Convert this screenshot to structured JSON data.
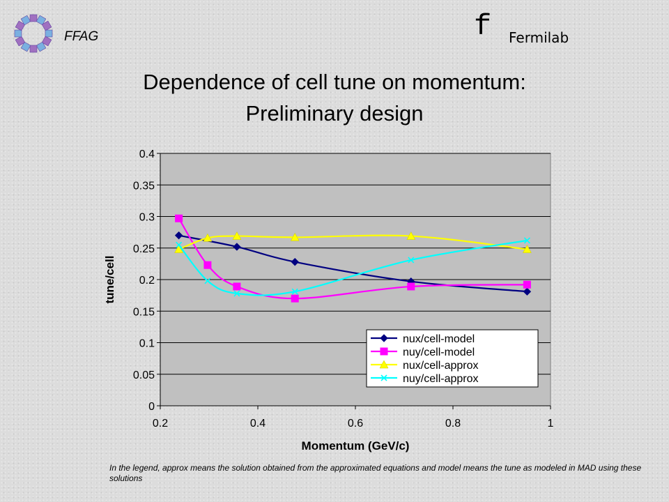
{
  "header": {
    "left_label": "FFAG",
    "right_glyph": "f",
    "right_label": "Fermilab"
  },
  "slide": {
    "title_line1": "Dependence of cell tune on momentum:",
    "title_line2": "Preliminary design",
    "caption": "In the legend, approx means the solution obtained from the approximated equations and model means the tune as modeled in MAD using these solutions"
  },
  "chart_data": {
    "type": "line",
    "xlabel": "Momentum (GeV/c)",
    "ylabel": "tune/cell",
    "xlim": [
      0.2,
      1
    ],
    "ylim": [
      0,
      0.4
    ],
    "xticks": [
      "0.2",
      "0.4",
      "0.6",
      "0.8",
      "1"
    ],
    "yticks": [
      "0",
      "0.05",
      "0.1",
      "0.15",
      "0.2",
      "0.25",
      "0.3",
      "0.35",
      "0.4"
    ],
    "grid": "horizontal",
    "legend_position": "bottom-right",
    "plot_background": "#c0c0c0",
    "series": [
      {
        "name": "nux/cell-model",
        "color": "#000080",
        "marker": "diamond",
        "x": [
          0.238,
          0.357,
          0.476,
          0.714,
          0.952
        ],
        "y": [
          0.27,
          0.252,
          0.228,
          0.197,
          0.181
        ]
      },
      {
        "name": "nuy/cell-model",
        "color": "#ff00ff",
        "marker": "square",
        "x": [
          0.238,
          0.297,
          0.357,
          0.476,
          0.714,
          0.952
        ],
        "y": [
          0.297,
          0.223,
          0.189,
          0.17,
          0.189,
          0.192
        ]
      },
      {
        "name": "nux/cell-approx",
        "color": "#ffff00",
        "marker": "triangle",
        "x": [
          0.238,
          0.297,
          0.357,
          0.476,
          0.714,
          0.952
        ],
        "y": [
          0.248,
          0.266,
          0.269,
          0.267,
          0.269,
          0.248
        ]
      },
      {
        "name": "nuy/cell-approx",
        "color": "#00ffff",
        "marker": "x",
        "x": [
          0.238,
          0.297,
          0.357,
          0.476,
          0.714,
          0.952
        ],
        "y": [
          0.255,
          0.198,
          0.178,
          0.181,
          0.231,
          0.262
        ]
      }
    ]
  }
}
